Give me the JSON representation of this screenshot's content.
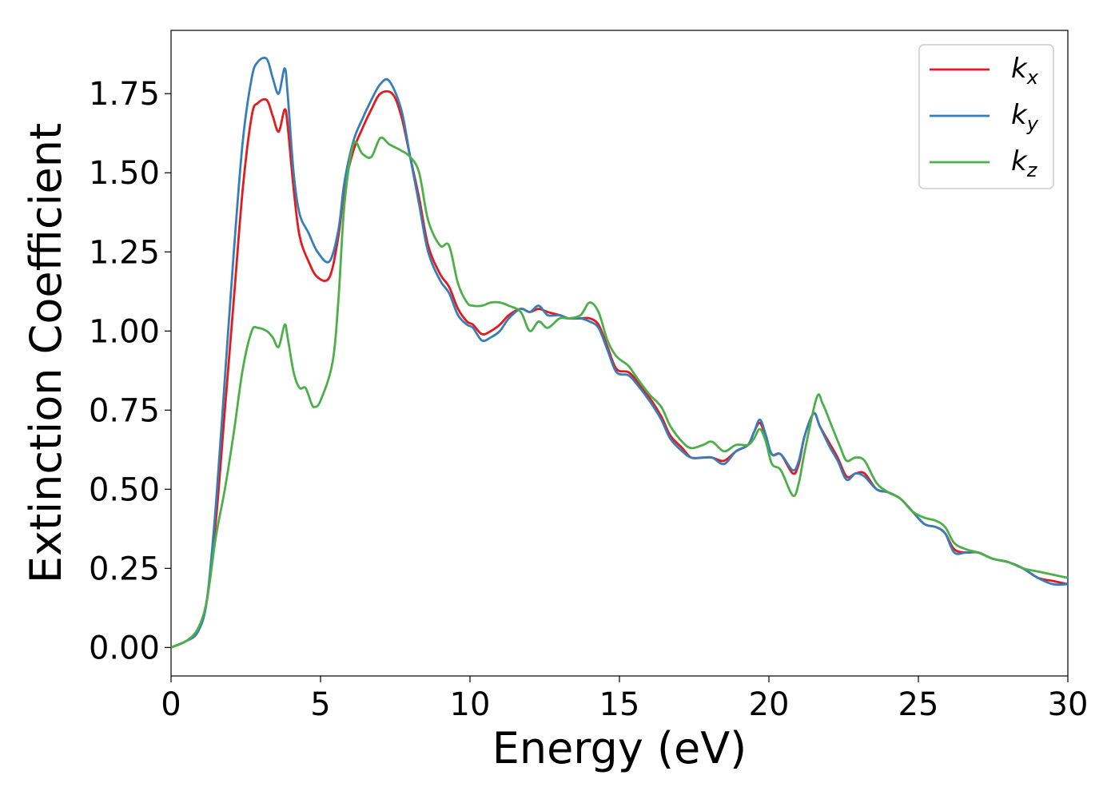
{
  "chart_data": {
    "type": "line",
    "xlabel": "Energy (eV)",
    "ylabel": "Extinction Coefficient",
    "xlim": [
      0,
      30
    ],
    "ylim": [
      -0.09,
      1.95
    ],
    "xticks": [
      0,
      5,
      10,
      15,
      20,
      25,
      30
    ],
    "xtick_labels": [
      "0",
      "5",
      "10",
      "15",
      "20",
      "25",
      "30"
    ],
    "yticks": [
      0.0,
      0.25,
      0.5,
      0.75,
      1.0,
      1.25,
      1.5,
      1.75
    ],
    "ytick_labels": [
      "0.00",
      "0.25",
      "0.50",
      "0.75",
      "1.00",
      "1.25",
      "1.50",
      "1.75"
    ],
    "grid": false,
    "legend_position": "top-right",
    "series": [
      {
        "name": "k_x",
        "label_main": "k",
        "label_sub": "x",
        "color": "#e41a1c",
        "points": [
          [
            0,
            0
          ],
          [
            0.5,
            0.02
          ],
          [
            0.9,
            0.05
          ],
          [
            1.2,
            0.15
          ],
          [
            1.5,
            0.4
          ],
          [
            1.8,
            0.75
          ],
          [
            2.1,
            1.1
          ],
          [
            2.4,
            1.45
          ],
          [
            2.7,
            1.68
          ],
          [
            2.9,
            1.72
          ],
          [
            3.2,
            1.73
          ],
          [
            3.4,
            1.68
          ],
          [
            3.6,
            1.63
          ],
          [
            3.8,
            1.7
          ],
          [
            3.9,
            1.65
          ],
          [
            4.1,
            1.45
          ],
          [
            4.3,
            1.3
          ],
          [
            4.6,
            1.22
          ],
          [
            4.9,
            1.17
          ],
          [
            5.3,
            1.17
          ],
          [
            5.6,
            1.3
          ],
          [
            5.8,
            1.45
          ],
          [
            6.1,
            1.57
          ],
          [
            6.4,
            1.64
          ],
          [
            6.7,
            1.7
          ],
          [
            7.0,
            1.75
          ],
          [
            7.4,
            1.75
          ],
          [
            7.7,
            1.68
          ],
          [
            8.0,
            1.55
          ],
          [
            8.3,
            1.42
          ],
          [
            8.6,
            1.27
          ],
          [
            9.0,
            1.18
          ],
          [
            9.3,
            1.14
          ],
          [
            9.6,
            1.07
          ],
          [
            9.9,
            1.03
          ],
          [
            10.1,
            1.02
          ],
          [
            10.4,
            0.99
          ],
          [
            10.7,
            1.0
          ],
          [
            11.0,
            1.02
          ],
          [
            11.3,
            1.05
          ],
          [
            11.7,
            1.07
          ],
          [
            12.0,
            1.06
          ],
          [
            12.3,
            1.07
          ],
          [
            12.6,
            1.06
          ],
          [
            13.0,
            1.05
          ],
          [
            13.3,
            1.04
          ],
          [
            13.7,
            1.04
          ],
          [
            14.0,
            1.04
          ],
          [
            14.3,
            1.02
          ],
          [
            14.6,
            0.95
          ],
          [
            14.9,
            0.88
          ],
          [
            15.3,
            0.87
          ],
          [
            15.6,
            0.84
          ],
          [
            16.0,
            0.79
          ],
          [
            16.4,
            0.73
          ],
          [
            16.7,
            0.67
          ],
          [
            17.1,
            0.63
          ],
          [
            17.4,
            0.6
          ],
          [
            17.8,
            0.6
          ],
          [
            18.1,
            0.6
          ],
          [
            18.5,
            0.59
          ],
          [
            18.9,
            0.62
          ],
          [
            19.3,
            0.64
          ],
          [
            19.5,
            0.68
          ],
          [
            19.7,
            0.71
          ],
          [
            19.9,
            0.66
          ],
          [
            20.1,
            0.61
          ],
          [
            20.4,
            0.61
          ],
          [
            20.8,
            0.55
          ],
          [
            21.0,
            0.58
          ],
          [
            21.2,
            0.67
          ],
          [
            21.5,
            0.74
          ],
          [
            21.7,
            0.7
          ],
          [
            22.0,
            0.65
          ],
          [
            22.3,
            0.6
          ],
          [
            22.6,
            0.54
          ],
          [
            22.9,
            0.55
          ],
          [
            23.2,
            0.55
          ],
          [
            23.6,
            0.5
          ],
          [
            24.0,
            0.49
          ],
          [
            24.4,
            0.47
          ],
          [
            24.8,
            0.43
          ],
          [
            25.2,
            0.39
          ],
          [
            25.6,
            0.38
          ],
          [
            25.9,
            0.36
          ],
          [
            26.2,
            0.31
          ],
          [
            26.6,
            0.3
          ],
          [
            27.0,
            0.3
          ],
          [
            27.5,
            0.28
          ],
          [
            28.0,
            0.27
          ],
          [
            28.5,
            0.25
          ],
          [
            29.0,
            0.22
          ],
          [
            29.5,
            0.21
          ],
          [
            30.0,
            0.2
          ]
        ]
      },
      {
        "name": "k_y",
        "label_main": "k",
        "label_sub": "y",
        "color": "#377eb8",
        "points": [
          [
            0,
            0
          ],
          [
            0.5,
            0.02
          ],
          [
            0.9,
            0.05
          ],
          [
            1.2,
            0.15
          ],
          [
            1.5,
            0.45
          ],
          [
            1.8,
            0.85
          ],
          [
            2.1,
            1.25
          ],
          [
            2.4,
            1.6
          ],
          [
            2.7,
            1.8
          ],
          [
            2.9,
            1.85
          ],
          [
            3.2,
            1.86
          ],
          [
            3.4,
            1.8
          ],
          [
            3.6,
            1.75
          ],
          [
            3.8,
            1.83
          ],
          [
            3.9,
            1.75
          ],
          [
            4.1,
            1.5
          ],
          [
            4.3,
            1.37
          ],
          [
            4.6,
            1.31
          ],
          [
            4.9,
            1.25
          ],
          [
            5.3,
            1.22
          ],
          [
            5.6,
            1.32
          ],
          [
            5.8,
            1.47
          ],
          [
            6.1,
            1.6
          ],
          [
            6.4,
            1.67
          ],
          [
            6.7,
            1.73
          ],
          [
            7.0,
            1.78
          ],
          [
            7.3,
            1.79
          ],
          [
            7.7,
            1.7
          ],
          [
            8.0,
            1.55
          ],
          [
            8.3,
            1.4
          ],
          [
            8.6,
            1.25
          ],
          [
            9.0,
            1.16
          ],
          [
            9.3,
            1.12
          ],
          [
            9.6,
            1.05
          ],
          [
            9.9,
            1.02
          ],
          [
            10.1,
            1.01
          ],
          [
            10.4,
            0.97
          ],
          [
            10.7,
            0.98
          ],
          [
            11.0,
            1.0
          ],
          [
            11.3,
            1.04
          ],
          [
            11.7,
            1.07
          ],
          [
            12.0,
            1.06
          ],
          [
            12.3,
            1.08
          ],
          [
            12.6,
            1.05
          ],
          [
            13.0,
            1.05
          ],
          [
            13.3,
            1.04
          ],
          [
            13.7,
            1.04
          ],
          [
            14.0,
            1.03
          ],
          [
            14.3,
            1.01
          ],
          [
            14.6,
            0.94
          ],
          [
            14.9,
            0.87
          ],
          [
            15.3,
            0.86
          ],
          [
            15.6,
            0.83
          ],
          [
            16.0,
            0.78
          ],
          [
            16.4,
            0.72
          ],
          [
            16.7,
            0.66
          ],
          [
            17.1,
            0.62
          ],
          [
            17.4,
            0.6
          ],
          [
            17.8,
            0.6
          ],
          [
            18.1,
            0.6
          ],
          [
            18.5,
            0.58
          ],
          [
            18.9,
            0.62
          ],
          [
            19.3,
            0.64
          ],
          [
            19.5,
            0.68
          ],
          [
            19.7,
            0.72
          ],
          [
            19.9,
            0.67
          ],
          [
            20.1,
            0.61
          ],
          [
            20.4,
            0.61
          ],
          [
            20.8,
            0.56
          ],
          [
            21.0,
            0.59
          ],
          [
            21.2,
            0.67
          ],
          [
            21.5,
            0.74
          ],
          [
            21.7,
            0.7
          ],
          [
            22.0,
            0.64
          ],
          [
            22.3,
            0.59
          ],
          [
            22.6,
            0.53
          ],
          [
            22.9,
            0.55
          ],
          [
            23.2,
            0.54
          ],
          [
            23.6,
            0.5
          ],
          [
            24.0,
            0.49
          ],
          [
            24.4,
            0.47
          ],
          [
            24.8,
            0.43
          ],
          [
            25.2,
            0.39
          ],
          [
            25.6,
            0.38
          ],
          [
            25.9,
            0.36
          ],
          [
            26.2,
            0.3
          ],
          [
            26.6,
            0.3
          ],
          [
            27.0,
            0.3
          ],
          [
            27.5,
            0.28
          ],
          [
            28.0,
            0.27
          ],
          [
            28.5,
            0.25
          ],
          [
            29.0,
            0.22
          ],
          [
            29.5,
            0.2
          ],
          [
            30.0,
            0.2
          ]
        ]
      },
      {
        "name": "k_z",
        "label_main": "k",
        "label_sub": "z",
        "color": "#4daf4a",
        "points": [
          [
            0,
            0
          ],
          [
            0.5,
            0.02
          ],
          [
            0.9,
            0.06
          ],
          [
            1.2,
            0.15
          ],
          [
            1.5,
            0.35
          ],
          [
            1.8,
            0.5
          ],
          [
            2.1,
            0.68
          ],
          [
            2.4,
            0.88
          ],
          [
            2.7,
            1.0
          ],
          [
            2.9,
            1.01
          ],
          [
            3.2,
            1.0
          ],
          [
            3.4,
            0.98
          ],
          [
            3.6,
            0.95
          ],
          [
            3.8,
            1.02
          ],
          [
            3.9,
            0.98
          ],
          [
            4.1,
            0.87
          ],
          [
            4.3,
            0.82
          ],
          [
            4.5,
            0.82
          ],
          [
            4.7,
            0.77
          ],
          [
            4.8,
            0.76
          ],
          [
            5.0,
            0.78
          ],
          [
            5.4,
            0.9
          ],
          [
            5.6,
            1.1
          ],
          [
            5.8,
            1.4
          ],
          [
            6.1,
            1.59
          ],
          [
            6.4,
            1.56
          ],
          [
            6.7,
            1.55
          ],
          [
            7.0,
            1.61
          ],
          [
            7.3,
            1.59
          ],
          [
            7.7,
            1.57
          ],
          [
            8.0,
            1.55
          ],
          [
            8.3,
            1.5
          ],
          [
            8.6,
            1.35
          ],
          [
            9.0,
            1.27
          ],
          [
            9.3,
            1.27
          ],
          [
            9.6,
            1.15
          ],
          [
            9.9,
            1.09
          ],
          [
            10.1,
            1.08
          ],
          [
            10.4,
            1.08
          ],
          [
            10.7,
            1.09
          ],
          [
            11.0,
            1.09
          ],
          [
            11.3,
            1.08
          ],
          [
            11.7,
            1.06
          ],
          [
            12.0,
            1.0
          ],
          [
            12.3,
            1.03
          ],
          [
            12.6,
            1.01
          ],
          [
            13.0,
            1.04
          ],
          [
            13.3,
            1.04
          ],
          [
            13.7,
            1.05
          ],
          [
            14.0,
            1.09
          ],
          [
            14.3,
            1.06
          ],
          [
            14.6,
            0.97
          ],
          [
            14.9,
            0.92
          ],
          [
            15.3,
            0.89
          ],
          [
            15.6,
            0.85
          ],
          [
            16.0,
            0.8
          ],
          [
            16.4,
            0.76
          ],
          [
            16.7,
            0.7
          ],
          [
            17.1,
            0.65
          ],
          [
            17.4,
            0.63
          ],
          [
            17.8,
            0.64
          ],
          [
            18.1,
            0.65
          ],
          [
            18.5,
            0.62
          ],
          [
            18.9,
            0.64
          ],
          [
            19.3,
            0.64
          ],
          [
            19.5,
            0.66
          ],
          [
            19.7,
            0.69
          ],
          [
            19.9,
            0.65
          ],
          [
            20.1,
            0.58
          ],
          [
            20.4,
            0.56
          ],
          [
            20.8,
            0.48
          ],
          [
            21.0,
            0.52
          ],
          [
            21.2,
            0.62
          ],
          [
            21.6,
            0.79
          ],
          [
            21.8,
            0.77
          ],
          [
            22.1,
            0.7
          ],
          [
            22.4,
            0.63
          ],
          [
            22.6,
            0.59
          ],
          [
            22.9,
            0.6
          ],
          [
            23.2,
            0.59
          ],
          [
            23.6,
            0.52
          ],
          [
            24.0,
            0.49
          ],
          [
            24.4,
            0.47
          ],
          [
            24.8,
            0.43
          ],
          [
            25.2,
            0.41
          ],
          [
            25.6,
            0.4
          ],
          [
            25.9,
            0.38
          ],
          [
            26.2,
            0.33
          ],
          [
            26.6,
            0.31
          ],
          [
            27.0,
            0.3
          ],
          [
            27.5,
            0.28
          ],
          [
            28.0,
            0.27
          ],
          [
            28.5,
            0.25
          ],
          [
            29.0,
            0.24
          ],
          [
            29.5,
            0.23
          ],
          [
            30.0,
            0.22
          ]
        ]
      }
    ]
  }
}
